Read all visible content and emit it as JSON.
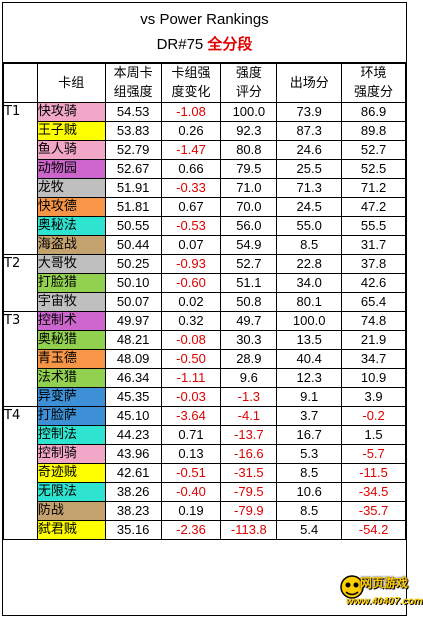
{
  "title": {
    "line1": "vs Power Rankings",
    "line2_prefix": "DR#75 ",
    "line2_highlight": "全分段"
  },
  "headers": {
    "tier": "",
    "deck": "卡组",
    "week_strength": "本周卡\n组强度",
    "strength_change": "卡组强\n度变化",
    "strength_score": "强度\n评分",
    "play_rate": "出场分",
    "env_strength": "环境\n强度分"
  },
  "colors": {
    "pink": "#f2a7c9",
    "yellow": "#ffff00",
    "purple": "#cc66cc",
    "gray": "#bfbfbf",
    "orange": "#f79646",
    "green": "#92d050",
    "teal": "#2ee3d0",
    "blue": "#3d8fd6",
    "brown": "#c4a26e",
    "white": "#ffffff",
    "negative_text": "#e00000"
  },
  "rows": [
    {
      "tier": "T1",
      "deck": "快攻骑",
      "color": "pink",
      "strength": "54.53",
      "change": "-1.08",
      "score": "100.0",
      "play": "73.9",
      "env": "86.9"
    },
    {
      "tier": "",
      "deck": "王子贼",
      "color": "yellow",
      "strength": "53.83",
      "change": "0.26",
      "score": "92.3",
      "play": "87.3",
      "env": "89.8"
    },
    {
      "tier": "",
      "deck": "鱼人骑",
      "color": "pink",
      "strength": "52.79",
      "change": "-1.47",
      "score": "80.8",
      "play": "24.6",
      "env": "52.7"
    },
    {
      "tier": "",
      "deck": "动物园",
      "color": "purple",
      "strength": "52.67",
      "change": "0.66",
      "score": "79.5",
      "play": "25.5",
      "env": "52.5"
    },
    {
      "tier": "",
      "deck": "龙牧",
      "color": "gray",
      "strength": "51.91",
      "change": "-0.33",
      "score": "71.0",
      "play": "71.3",
      "env": "71.2"
    },
    {
      "tier": "",
      "deck": "快攻德",
      "color": "orange",
      "strength": "51.81",
      "change": "0.67",
      "score": "70.0",
      "play": "24.5",
      "env": "47.2"
    },
    {
      "tier": "",
      "deck": "奥秘法",
      "color": "teal",
      "strength": "50.55",
      "change": "-0.53",
      "score": "56.0",
      "play": "55.0",
      "env": "55.5"
    },
    {
      "tier": "",
      "deck": "海盗战",
      "color": "brown",
      "strength": "50.44",
      "change": "0.07",
      "score": "54.9",
      "play": "8.5",
      "env": "31.7"
    },
    {
      "tier": "T2",
      "deck": "大哥牧",
      "color": "gray",
      "strength": "50.25",
      "change": "-0.93",
      "score": "52.7",
      "play": "22.8",
      "env": "37.8"
    },
    {
      "tier": "",
      "deck": "打脸猎",
      "color": "green",
      "strength": "50.10",
      "change": "-0.60",
      "score": "51.1",
      "play": "34.0",
      "env": "42.6"
    },
    {
      "tier": "",
      "deck": "宇宙牧",
      "color": "gray",
      "strength": "50.07",
      "change": "0.02",
      "score": "50.8",
      "play": "80.1",
      "env": "65.4"
    },
    {
      "tier": "T3",
      "deck": "控制术",
      "color": "purple",
      "strength": "49.97",
      "change": "0.32",
      "score": "49.7",
      "play": "100.0",
      "env": "74.8"
    },
    {
      "tier": "",
      "deck": "奥秘猎",
      "color": "green",
      "strength": "48.21",
      "change": "-0.08",
      "score": "30.3",
      "play": "13.5",
      "env": "21.9"
    },
    {
      "tier": "",
      "deck": "青玉德",
      "color": "orange",
      "strength": "48.09",
      "change": "-0.50",
      "score": "28.9",
      "play": "40.4",
      "env": "34.7"
    },
    {
      "tier": "",
      "deck": "法术猎",
      "color": "green",
      "strength": "46.34",
      "change": "-1.11",
      "score": "9.6",
      "play": "12.3",
      "env": "10.9"
    },
    {
      "tier": "",
      "deck": "异变萨",
      "color": "blue",
      "strength": "45.35",
      "change": "-0.03",
      "score": "-1.3",
      "play": "9.1",
      "env": "3.9"
    },
    {
      "tier": "T4",
      "deck": "打脸萨",
      "color": "blue",
      "strength": "45.10",
      "change": "-3.64",
      "score": "-4.1",
      "play": "3.7",
      "env": "-0.2"
    },
    {
      "tier": "",
      "deck": "控制法",
      "color": "teal",
      "strength": "44.23",
      "change": "0.71",
      "score": "-13.7",
      "play": "16.7",
      "env": "1.5"
    },
    {
      "tier": "",
      "deck": "控制骑",
      "color": "pink",
      "strength": "43.96",
      "change": "0.13",
      "score": "-16.6",
      "play": "5.3",
      "env": "-5.7"
    },
    {
      "tier": "",
      "deck": "奇迹贼",
      "color": "yellow",
      "strength": "42.61",
      "change": "-0.51",
      "score": "-31.5",
      "play": "8.5",
      "env": "-11.5"
    },
    {
      "tier": "",
      "deck": "无限法",
      "color": "teal",
      "strength": "38.26",
      "change": "-0.40",
      "score": "-79.5",
      "play": "10.6",
      "env": "-34.5"
    },
    {
      "tier": "",
      "deck": "防战",
      "color": "brown",
      "strength": "38.23",
      "change": "0.19",
      "score": "-79.9",
      "play": "8.5",
      "env": "-35.7"
    },
    {
      "tier": "",
      "deck": "弑君贼",
      "color": "yellow",
      "strength": "35.16",
      "change": "-2.36",
      "score": "-113.8",
      "play": "5.4",
      "env": "-54.2"
    }
  ],
  "watermark": {
    "site_name": "网页游戏",
    "site_url": "www.40407.com"
  }
}
